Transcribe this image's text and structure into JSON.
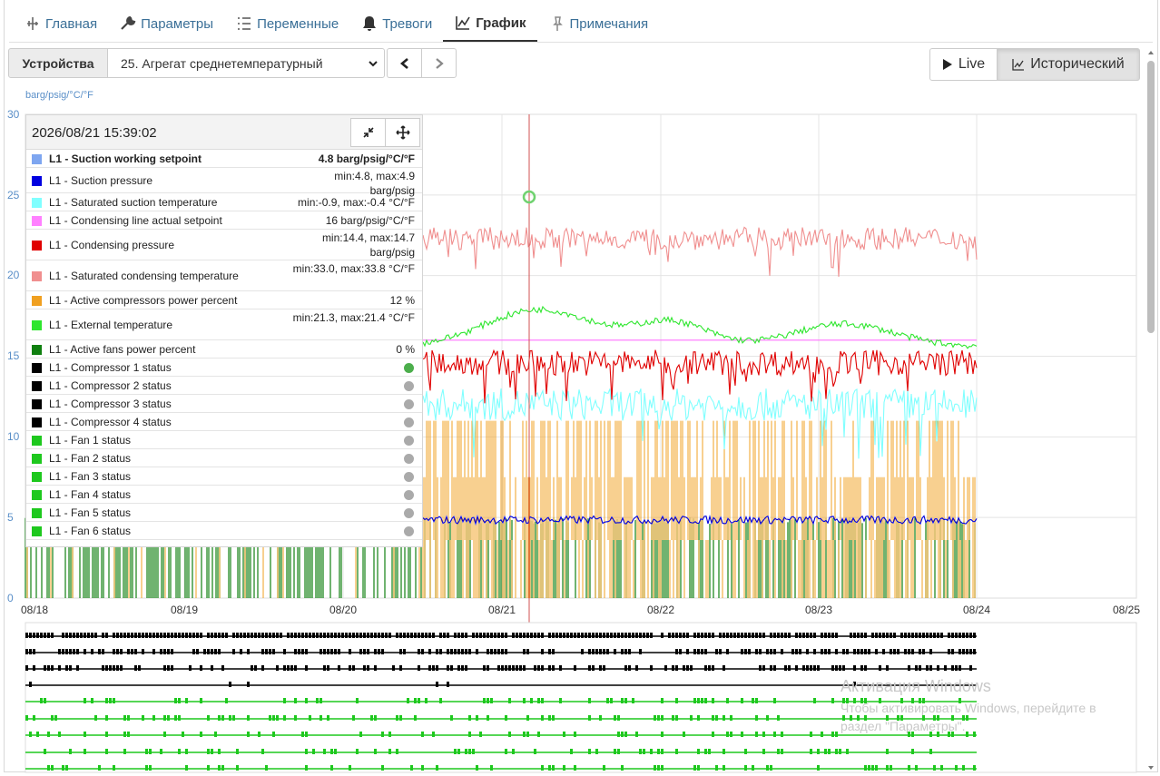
{
  "tabs": [
    {
      "label": "Главная",
      "icon": "home-network-icon"
    },
    {
      "label": "Параметры",
      "icon": "wrench-icon"
    },
    {
      "label": "Переменные",
      "icon": "variables-list-icon"
    },
    {
      "label": "Тревоги",
      "icon": "bell-icon"
    },
    {
      "label": "График",
      "icon": "chart-icon",
      "active": true
    },
    {
      "label": "Примечания",
      "icon": "pin-icon"
    }
  ],
  "toolbar": {
    "devices_label": "Устройства",
    "device_selected": "25. Агрегат среднетемпературный",
    "live_label": "Live",
    "historical_label": "Исторический",
    "active_mode": "historical"
  },
  "chart": {
    "unit_label": "barg/psig/°C/°F",
    "y_ticks": [
      "30",
      "25",
      "20",
      "15",
      "10",
      "5",
      "0"
    ],
    "x_ticks": [
      "08/18",
      "08/19",
      "08/20",
      "08/21",
      "08/22",
      "08/23",
      "08/24",
      "08/25"
    ],
    "cursor_date": "2026/08/21 15:39:02"
  },
  "chart_data": {
    "type": "line",
    "ylim": [
      0,
      30
    ],
    "x": [
      "08/18",
      "08/19",
      "08/20",
      "08/21",
      "08/22",
      "08/23",
      "08/24",
      "08/25"
    ],
    "ylabel": "barg/psig/°C/°F",
    "grid": true,
    "series": [
      {
        "name": "L1 - Saturated condensing temperature",
        "color": "#f08f8f",
        "level_mean": 22.3
      },
      {
        "name": "L1 - External temperature",
        "color": "#2ee62e",
        "level_mean": 17.0
      },
      {
        "name": "L1 - Condensing line actual setpoint",
        "color": "#ff80ff",
        "level_mean": 16.0
      },
      {
        "name": "L1 - Condensing pressure",
        "color": "#e00000",
        "level_mean": 14.6
      },
      {
        "name": "L1 - Saturated suction temperature",
        "color": "#80ffff",
        "level_mean": 12.0
      },
      {
        "name": "L1 - Active compressors power percent",
        "color": "#f0a020",
        "level_mean": 8.0
      },
      {
        "name": "L1 - Suction pressure",
        "color": "#0000e0",
        "level_mean": 4.85
      },
      {
        "name": "L1 - Active fans power percent",
        "color": "#108010",
        "level_mean": 4.8
      }
    ]
  },
  "legend": {
    "rows": [
      {
        "name": "L1 - Suction working setpoint",
        "value": "4.8 barg/psig/°C/°F",
        "color": "#7ea6f0",
        "bold": true
      },
      {
        "name": "L1 - Suction pressure",
        "value": "min:4.8, max:4.9 barg/psig",
        "color": "#0000e0"
      },
      {
        "name": "L1 - Saturated suction temperature",
        "value": "min:-0.9, max:-0.4 °C/°F",
        "color": "#80ffff"
      },
      {
        "name": "L1 - Condensing line actual setpoint",
        "value": "16 barg/psig/°C/°F",
        "color": "#ff80ff"
      },
      {
        "name": "L1 - Condensing pressure",
        "value": "min:14.4, max:14.7 barg/psig",
        "color": "#e00000"
      },
      {
        "name": "L1 - Saturated condensing temperature",
        "value": "min:33.0, max:33.8 °C/°F",
        "color": "#f08f8f"
      },
      {
        "name": "L1 - Active compressors power percent",
        "value": "12 %",
        "color": "#f0a020"
      },
      {
        "name": "L1 - External temperature",
        "value": "min:21.3, max:21.4 °C/°F",
        "color": "#2ee62e"
      },
      {
        "name": "L1 - Active fans power percent",
        "value": "0 %",
        "color": "#108010"
      },
      {
        "name": "L1 - Compressor 1 status",
        "color": "#000000",
        "status": "on"
      },
      {
        "name": "L1 - Compressor 2 status",
        "color": "#000000",
        "status": "off"
      },
      {
        "name": "L1 - Compressor 3 status",
        "color": "#000000",
        "status": "off"
      },
      {
        "name": "L1 - Compressor 4 status",
        "color": "#000000",
        "status": "off"
      },
      {
        "name": "L1 - Fan 1 status",
        "color": "#1ec81e",
        "status": "off"
      },
      {
        "name": "L1 - Fan 2 status",
        "color": "#1ec81e",
        "status": "off"
      },
      {
        "name": "L1 - Fan 3 status",
        "color": "#1ec81e",
        "status": "off"
      },
      {
        "name": "L1 - Fan 4 status",
        "color": "#1ec81e",
        "status": "off"
      },
      {
        "name": "L1 - Fan 5 status",
        "color": "#1ec81e",
        "status": "off"
      },
      {
        "name": "L1 - Fan 6 status",
        "color": "#1ec81e",
        "status": "off"
      }
    ]
  },
  "watermark": {
    "title": "Активация Windows",
    "line1": "Чтобы активировать Windows, перейдите в",
    "line2": "раздел \"Параметры\"."
  }
}
